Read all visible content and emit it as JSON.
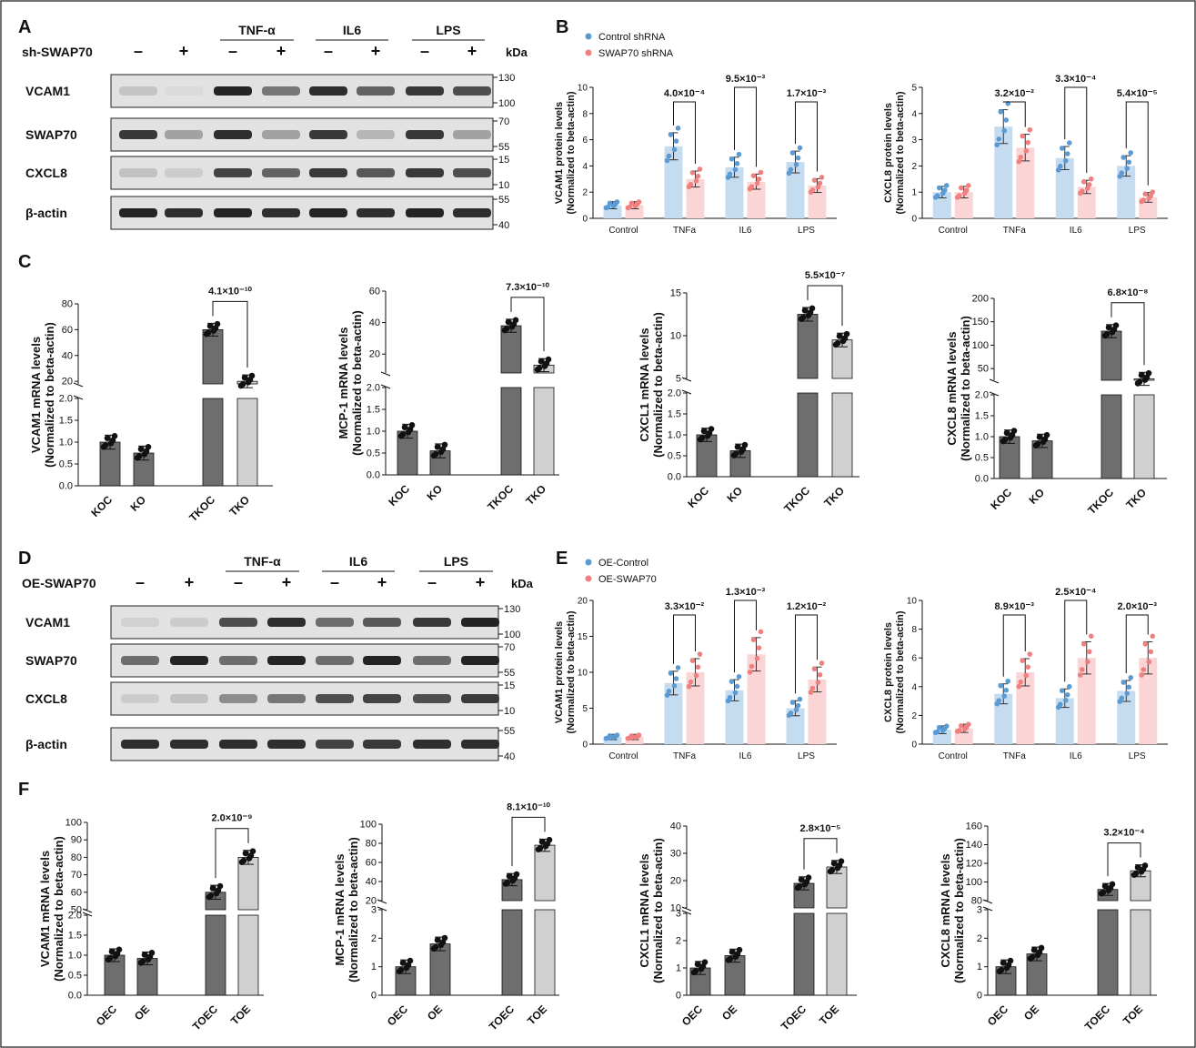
{
  "panel_letters": [
    "A",
    "B",
    "C",
    "D",
    "E",
    "F"
  ],
  "kda_label": "kDa",
  "colors": {
    "blue": "#5b9bd5",
    "blue_fill": "#c5dcf0",
    "red": "#f08080",
    "red_fill": "#fbd5d5",
    "dark": "#6e6e6e",
    "light": "#d0d0d0",
    "band": "#1e1e1e"
  },
  "blot_A": {
    "treatment_row_label": "sh-SWAP70",
    "signs": [
      "–",
      "+",
      "–",
      "+",
      "–",
      "+",
      "–",
      "+"
    ],
    "treatment_groups": [
      "TNF-α",
      "IL6",
      "LPS"
    ],
    "rows": [
      {
        "label": "VCAM1",
        "markers": [
          "130",
          "100"
        ],
        "intensity": [
          0.18,
          0.08,
          0.95,
          0.55,
          0.9,
          0.65,
          0.85,
          0.75
        ]
      },
      {
        "label": "SWAP70",
        "markers": [
          "70",
          "55"
        ],
        "intensity": [
          0.85,
          0.35,
          0.9,
          0.35,
          0.85,
          0.25,
          0.85,
          0.35
        ]
      },
      {
        "label": "CXCL8",
        "markers": [
          "15",
          "10"
        ],
        "intensity": [
          0.2,
          0.15,
          0.8,
          0.65,
          0.85,
          0.7,
          0.85,
          0.75
        ]
      },
      {
        "label": "β-actin",
        "markers": [
          "55",
          "40"
        ],
        "intensity": [
          0.95,
          0.9,
          0.95,
          0.9,
          0.95,
          0.9,
          0.95,
          0.9
        ]
      }
    ]
  },
  "blot_D": {
    "treatment_row_label": "OE-SWAP70",
    "signs": [
      "–",
      "+",
      "–",
      "+",
      "–",
      "+",
      "–",
      "+"
    ],
    "treatment_groups": [
      "TNF-α",
      "IL6",
      "LPS"
    ],
    "rows": [
      {
        "label": "VCAM1",
        "markers": [
          "130",
          "100"
        ],
        "intensity": [
          0.12,
          0.15,
          0.75,
          0.9,
          0.6,
          0.7,
          0.85,
          0.95
        ]
      },
      {
        "label": "SWAP70",
        "markers": [
          "70",
          "55"
        ],
        "intensity": [
          0.6,
          0.95,
          0.6,
          0.95,
          0.6,
          0.95,
          0.6,
          0.95
        ]
      },
      {
        "label": "CXCL8",
        "markers": [
          "15",
          "10"
        ],
        "intensity": [
          0.15,
          0.2,
          0.45,
          0.55,
          0.75,
          0.8,
          0.75,
          0.85
        ]
      },
      {
        "label": "β-actin",
        "markers": [
          "55",
          "40"
        ],
        "intensity": [
          0.9,
          0.9,
          0.9,
          0.9,
          0.8,
          0.85,
          0.9,
          0.9
        ]
      }
    ]
  },
  "chart_data": [
    {
      "id": "B1",
      "type": "bar",
      "ylabel": "VCAM1 protein levels",
      "ylabel2": "(Normalized to beta-actin)",
      "categories": [
        "Control",
        "TNFa",
        "IL6",
        "LPS"
      ],
      "legend": [
        "Control shRNA",
        "SWAP70 shRNA"
      ],
      "legend_placement": "top-left",
      "ylim": [
        0,
        10
      ],
      "yticks": [
        0,
        2,
        4,
        6,
        8,
        10
      ],
      "series": [
        {
          "name": "Control shRNA",
          "values": [
            1.0,
            5.5,
            3.9,
            4.3
          ]
        },
        {
          "name": "SWAP70 shRNA",
          "values": [
            1.0,
            3.0,
            2.8,
            2.5
          ]
        }
      ],
      "pvalues": [
        {
          "category": "TNFa",
          "label": "4.0×10⁻⁴"
        },
        {
          "category": "IL6",
          "label": "9.5×10⁻³"
        },
        {
          "category": "LPS",
          "label": "1.7×10⁻³"
        }
      ]
    },
    {
      "id": "B2",
      "type": "bar",
      "ylabel": "CXCL8 protein levels",
      "ylabel2": "(Normalized to beta-actin)",
      "categories": [
        "Control",
        "TNFa",
        "IL6",
        "LPS"
      ],
      "ylim": [
        0,
        5
      ],
      "yticks": [
        0,
        1,
        2,
        3,
        4,
        5
      ],
      "series": [
        {
          "name": "Control shRNA",
          "values": [
            1.0,
            3.5,
            2.3,
            2.0
          ]
        },
        {
          "name": "SWAP70 shRNA",
          "values": [
            1.0,
            2.7,
            1.2,
            0.8
          ]
        }
      ],
      "pvalues": [
        {
          "category": "TNFa",
          "label": "3.2×10⁻²"
        },
        {
          "category": "IL6",
          "label": "3.3×10⁻⁴"
        },
        {
          "category": "LPS",
          "label": "5.4×10⁻⁵"
        }
      ]
    },
    {
      "id": "C1",
      "type": "bar",
      "ylabel": "VCAM1 mRNA levels",
      "ylabel2": "(Normalized to beta-actin)",
      "categories": [
        "KOC",
        "KO",
        "TKOC",
        "TKO"
      ],
      "lower_ylim": [
        0,
        2.0
      ],
      "lower_yticks": [
        "0.0",
        "0.5",
        "1.0",
        "1.5",
        "2.0"
      ],
      "upper_ylim": [
        18,
        80
      ],
      "upper_yticks": [
        "20",
        "40",
        "60",
        "80"
      ],
      "values": [
        1.0,
        0.75,
        60,
        20
      ],
      "pvalue": {
        "label": "4.1×10⁻¹⁰"
      }
    },
    {
      "id": "C2",
      "type": "bar",
      "ylabel": "MCP-1 mRNA levels",
      "ylabel2": "(Normalized to beta-actin)",
      "categories": [
        "KOC",
        "KO",
        "TKOC",
        "TKO"
      ],
      "lower_ylim": [
        0,
        2.0
      ],
      "lower_yticks": [
        "0.0",
        "0.5",
        "1.0",
        "1.5",
        "2.0"
      ],
      "upper_ylim": [
        8,
        60
      ],
      "upper_yticks": [
        "20",
        "40",
        "60"
      ],
      "values": [
        1.0,
        0.55,
        38,
        13
      ],
      "pvalue": {
        "label": "7.3×10⁻¹⁰"
      }
    },
    {
      "id": "C3",
      "type": "bar",
      "ylabel": "CXCL1 mRNA levels",
      "ylabel2": "(Normalized to beta-actin)",
      "categories": [
        "KOC",
        "KO",
        "TKOC",
        "TKO"
      ],
      "lower_ylim": [
        0,
        2.0
      ],
      "lower_yticks": [
        "0.0",
        "0.5",
        "1.0",
        "1.5",
        "2.0"
      ],
      "upper_ylim": [
        5,
        15
      ],
      "upper_yticks": [
        "5",
        "10",
        "15"
      ],
      "values": [
        1.0,
        0.62,
        12.5,
        9.5
      ],
      "pvalue": {
        "label": "5.5×10⁻⁷"
      }
    },
    {
      "id": "C4",
      "type": "bar",
      "ylabel": "CXCL8 mRNA levels",
      "ylabel2": "(Normalized to beta-actin)",
      "categories": [
        "KOC",
        "KO",
        "TKOC",
        "TKO"
      ],
      "lower_ylim": [
        0,
        2.0
      ],
      "lower_yticks": [
        "0.0",
        "0.5",
        "1.0",
        "1.5",
        "2.0"
      ],
      "upper_ylim": [
        25,
        200
      ],
      "upper_yticks": [
        "50",
        "100",
        "150",
        "200"
      ],
      "values": [
        1.0,
        0.9,
        130,
        28
      ],
      "pvalue": {
        "label": "6.8×10⁻⁸"
      }
    },
    {
      "id": "E1",
      "type": "bar",
      "ylabel": "VCAM1 protein levels",
      "ylabel2": "(Normalized to beta-actin)",
      "categories": [
        "Control",
        "TNFa",
        "IL6",
        "LPS"
      ],
      "legend": [
        "OE-Control",
        "OE-SWAP70"
      ],
      "legend_placement": "top-left",
      "ylim": [
        0,
        20
      ],
      "yticks": [
        0,
        5,
        10,
        15,
        20
      ],
      "series": [
        {
          "name": "OE-Control",
          "values": [
            1.0,
            8.5,
            7.5,
            5.0
          ]
        },
        {
          "name": "OE-SWAP70",
          "values": [
            1.0,
            10.0,
            12.5,
            9.0
          ]
        }
      ],
      "pvalues": [
        {
          "category": "TNFa",
          "label": "3.3×10⁻²"
        },
        {
          "category": "IL6",
          "label": "1.3×10⁻³"
        },
        {
          "category": "LPS",
          "label": "1.2×10⁻²"
        }
      ]
    },
    {
      "id": "E2",
      "type": "bar",
      "ylabel": "CXCL8 protein levels",
      "ylabel2": "(Normalized to beta-actin)",
      "categories": [
        "Control",
        "TNFa",
        "IL6",
        "LPS"
      ],
      "ylim": [
        0,
        10
      ],
      "yticks": [
        0,
        2,
        4,
        6,
        8,
        10
      ],
      "series": [
        {
          "name": "OE-Control",
          "values": [
            1.0,
            3.5,
            3.2,
            3.7
          ]
        },
        {
          "name": "OE-SWAP70",
          "values": [
            1.1,
            5.0,
            6.0,
            6.0
          ]
        }
      ],
      "pvalues": [
        {
          "category": "TNFa",
          "label": "8.9×10⁻³"
        },
        {
          "category": "IL6",
          "label": "2.5×10⁻⁴"
        },
        {
          "category": "LPS",
          "label": "2.0×10⁻³"
        }
      ]
    },
    {
      "id": "F1",
      "type": "bar",
      "ylabel": "VCAM1 mRNA levels",
      "ylabel2": "(Normalized to beta-actin)",
      "categories": [
        "OEC",
        "OE",
        "TOEC",
        "TOE"
      ],
      "lower_ylim": [
        0,
        3
      ],
      "lower_yticks": [
        "0.0",
        "0.5",
        "1.0",
        "1.5",
        "2.0"
      ],
      "lower_top": 2.0,
      "upper_ylim": [
        50,
        100
      ],
      "upper_yticks": [
        "50",
        "60",
        "70",
        "80",
        "90",
        "100"
      ],
      "values": [
        1.0,
        0.92,
        60,
        80
      ],
      "pvalue": {
        "label": "2.0×10⁻⁹"
      }
    },
    {
      "id": "F2",
      "type": "bar",
      "ylabel": "MCP-1 mRNA levels",
      "ylabel2": "(Normalized to beta-actin)",
      "categories": [
        "OEC",
        "OE",
        "TOEC",
        "TOE"
      ],
      "lower_ylim": [
        0,
        3
      ],
      "lower_yticks": [
        "0",
        "1",
        "2",
        "3"
      ],
      "upper_ylim": [
        20,
        100
      ],
      "upper_yticks": [
        "20",
        "40",
        "60",
        "80",
        "100"
      ],
      "values": [
        1.0,
        1.8,
        42,
        78
      ],
      "pvalue": {
        "label": "8.1×10⁻¹⁰"
      }
    },
    {
      "id": "F3",
      "type": "bar",
      "ylabel": "CXCL1 mRNA levels",
      "ylabel2": "(Normalized to beta-actin)",
      "categories": [
        "OEC",
        "OE",
        "TOEC",
        "TOE"
      ],
      "lower_ylim": [
        0,
        3
      ],
      "lower_yticks": [
        "0",
        "1",
        "2",
        "3"
      ],
      "upper_ylim": [
        10,
        40
      ],
      "upper_yticks": [
        "10",
        "20",
        "30",
        "40"
      ],
      "values": [
        1.0,
        1.45,
        19,
        25
      ],
      "pvalue": {
        "label": "2.8×10⁻⁵"
      }
    },
    {
      "id": "F4",
      "type": "bar",
      "ylabel": "CXCL8 mRNA levels",
      "ylabel2": "(Normalized to beta-actin)",
      "categories": [
        "OEC",
        "OE",
        "TOEC",
        "TOE"
      ],
      "lower_ylim": [
        0,
        3
      ],
      "lower_yticks": [
        "0",
        "1",
        "2",
        "3"
      ],
      "upper_ylim": [
        80,
        160
      ],
      "upper_yticks": [
        "80",
        "100",
        "120",
        "140",
        "160"
      ],
      "values": [
        1.0,
        1.45,
        92,
        112
      ],
      "pvalue": {
        "label": "3.2×10⁻⁴"
      }
    }
  ]
}
